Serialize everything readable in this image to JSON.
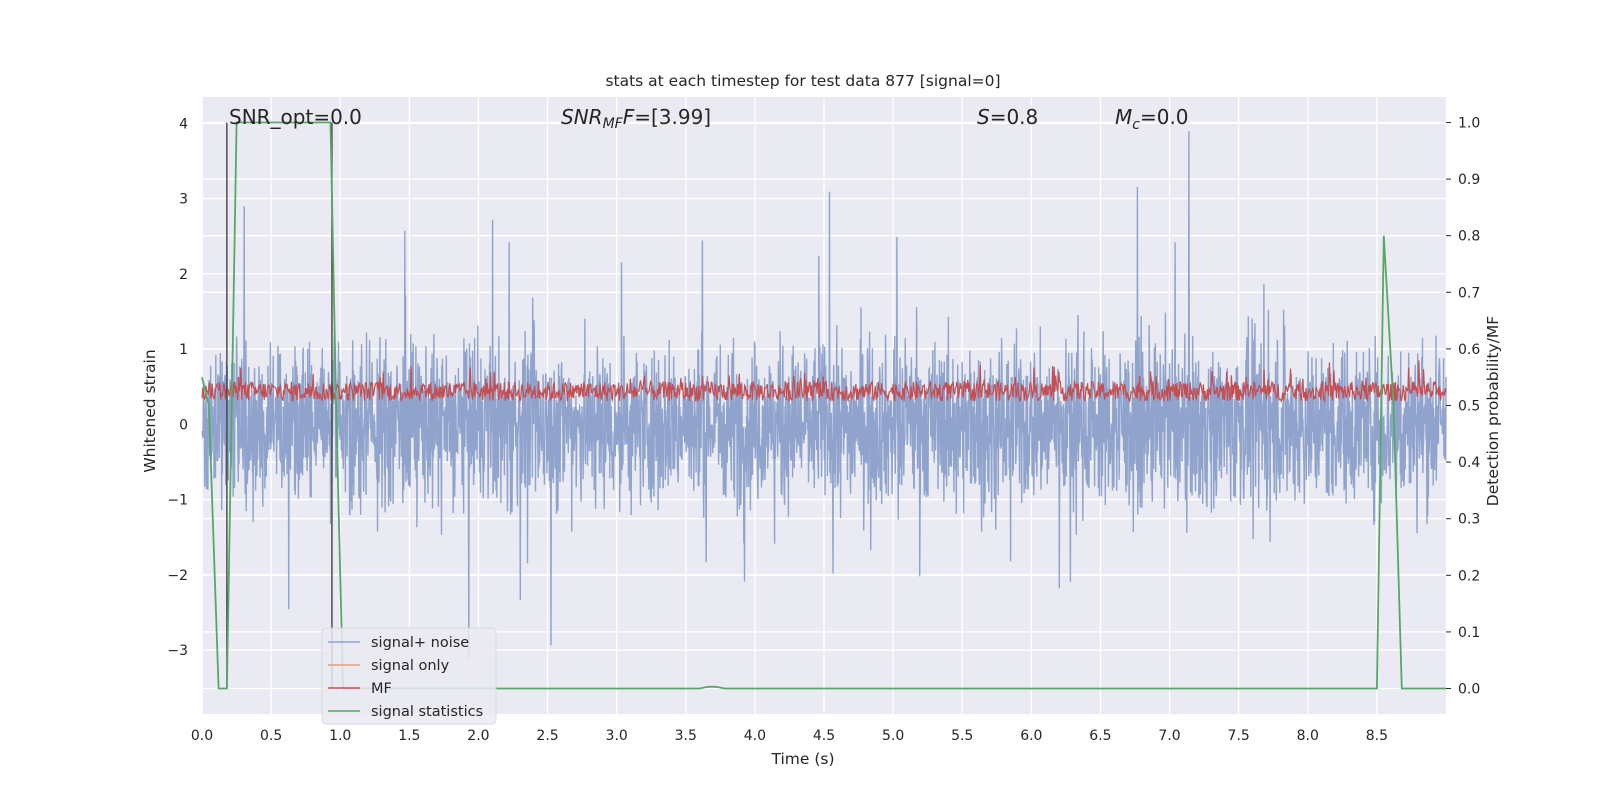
{
  "chart_data": {
    "type": "line",
    "title": "stats at each timestep for test data 877 [signal=0]",
    "xlabel": "Time (s)",
    "ylabel": "Whitened strain",
    "y2label": "Detection probability/MF",
    "xlim": [
      0.0,
      9.0
    ],
    "ylim": [
      -3.85,
      4.35
    ],
    "y2lim": [
      -0.045,
      1.045
    ],
    "x_ticks": [
      "0.0",
      "0.5",
      "1.0",
      "1.5",
      "2.0",
      "2.5",
      "3.0",
      "3.5",
      "4.0",
      "4.5",
      "5.0",
      "5.5",
      "6.0",
      "6.5",
      "7.0",
      "7.5",
      "8.0",
      "8.5"
    ],
    "y_ticks": [
      "−3",
      "−2",
      "−1",
      "0",
      "1",
      "2",
      "3",
      "4"
    ],
    "y2_ticks": [
      "0.0",
      "0.1",
      "0.2",
      "0.3",
      "0.4",
      "0.5",
      "0.6",
      "0.7",
      "0.8",
      "0.9",
      "1.0"
    ],
    "grid": true,
    "legend_position": "lower-left",
    "annotations": {
      "snr_opt": "SNR_opt=0.0",
      "snr_mf_main": "SNR",
      "snr_mf_sub": "MF",
      "snr_mf_value": "=[3.99]",
      "s_main": "S",
      "s_value": "=0.8",
      "mc_main": "M",
      "mc_sub": "c",
      "mc_value": "=0.0"
    },
    "vlines_x": [
      0.18,
      0.94
    ],
    "series": [
      {
        "name": "signal+ noise",
        "color": "#8fa3cc",
        "axis": "left",
        "description_values": "noise-like, amplitude about ±1.3 with spikes to ±3.5"
      },
      {
        "name": "signal only",
        "color": "#e8a07a",
        "axis": "left",
        "values": []
      },
      {
        "name": "MF",
        "color": "#c44e52",
        "axis": "right",
        "description_values": "fluctuates between 0.50 and 0.59"
      },
      {
        "name": "signal statistics",
        "color": "#55a868",
        "axis": "right",
        "x": [
          0.0,
          0.05,
          0.12,
          0.18,
          0.25,
          0.5,
          0.93,
          0.97,
          1.02,
          3.6,
          3.66,
          3.72,
          3.78,
          8.4,
          8.5,
          8.55,
          8.62,
          8.68,
          8.75,
          9.0
        ],
        "y": [
          0.55,
          0.5,
          0.0,
          0.0,
          1.0,
          1.0,
          1.0,
          0.5,
          0.0,
          0.0,
          0.003,
          0.003,
          0.0,
          0.0,
          0.0,
          0.8,
          0.5,
          0.0,
          0.0,
          0.0
        ]
      }
    ]
  }
}
